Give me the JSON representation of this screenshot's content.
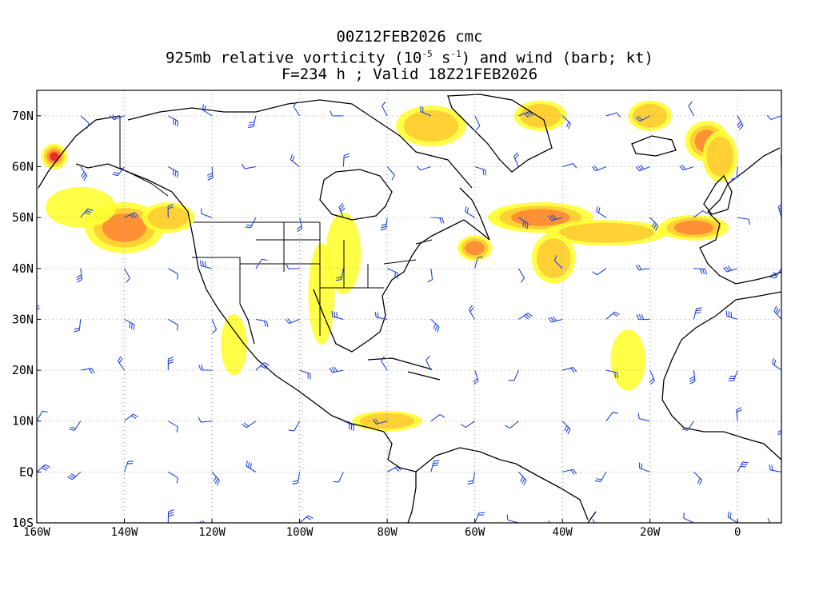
{
  "title": {
    "line1": "00Z12FEB2026 cmc",
    "line2_prefix": "925mb relative vorticity (10",
    "line2_exp1": "-5",
    "line2_mid": " s",
    "line2_exp2": "-1",
    "line2_suffix": ") and wind (barb; kt)",
    "line3": "F=234 h ; Valid 18Z21FEB2026"
  },
  "map": {
    "lon_range": [
      -160,
      10
    ],
    "lat_range": [
      -10,
      75
    ],
    "lat_ticks": [
      {
        "value": 70,
        "label": "70N"
      },
      {
        "value": 60,
        "label": "60N"
      },
      {
        "value": 50,
        "label": "50N"
      },
      {
        "value": 40,
        "label": "40N"
      },
      {
        "value": 30,
        "label": "30N"
      },
      {
        "value": 20,
        "label": "20N"
      },
      {
        "value": 10,
        "label": "10N"
      },
      {
        "value": 0,
        "label": "EQ"
      },
      {
        "value": -10,
        "label": "10S"
      }
    ],
    "lon_ticks": [
      {
        "value": -160,
        "label": "160W"
      },
      {
        "value": -140,
        "label": "140W"
      },
      {
        "value": -120,
        "label": "120W"
      },
      {
        "value": -100,
        "label": "100W"
      },
      {
        "value": -80,
        "label": "80W"
      },
      {
        "value": -60,
        "label": "60W"
      },
      {
        "value": -40,
        "label": "40W"
      },
      {
        "value": -20,
        "label": "20W"
      },
      {
        "value": 0,
        "label": "0"
      }
    ],
    "colors": {
      "vort_low": "#ffff33",
      "vort_mid": "#ffcc33",
      "vort_high": "#ff8833",
      "vort_peak": "#ee2222",
      "vort_max": "#ff44cc",
      "barb": "#2244dd",
      "coast": "#000000",
      "grid": "#999999"
    },
    "vorticity_features": [
      {
        "lon": -141,
        "lat": 48,
        "rx": 5,
        "ry": 3,
        "level": 4
      },
      {
        "lon": -140,
        "lat": 48,
        "rx": 9,
        "ry": 5,
        "level": 2
      },
      {
        "lon": -150,
        "lat": 52,
        "rx": 8,
        "ry": 4,
        "level": 0
      },
      {
        "lon": -156,
        "lat": 62,
        "rx": 3,
        "ry": 2.5,
        "level": 3
      },
      {
        "lon": -130,
        "lat": 50,
        "rx": 6,
        "ry": 3,
        "level": 1
      },
      {
        "lon": -52,
        "lat": 50,
        "rx": 4,
        "ry": 2,
        "level": 3
      },
      {
        "lon": -45,
        "lat": 50,
        "rx": 12,
        "ry": 3,
        "level": 2
      },
      {
        "lon": -30,
        "lat": 47,
        "rx": 14,
        "ry": 2.5,
        "level": 1
      },
      {
        "lon": -10,
        "lat": 48,
        "rx": 8,
        "ry": 2.5,
        "level": 2
      },
      {
        "lon": -42,
        "lat": 42,
        "rx": 5,
        "ry": 5,
        "level": 1
      },
      {
        "lon": -60,
        "lat": 44,
        "rx": 4,
        "ry": 2.5,
        "level": 2
      },
      {
        "lon": -7,
        "lat": 65,
        "rx": 5,
        "ry": 4,
        "level": 2
      },
      {
        "lon": -4,
        "lat": 62,
        "rx": 4,
        "ry": 5,
        "level": 1
      },
      {
        "lon": -90,
        "lat": 43,
        "rx": 4,
        "ry": 8,
        "level": 0
      },
      {
        "lon": -70,
        "lat": 68,
        "rx": 8,
        "ry": 4,
        "level": 1
      },
      {
        "lon": -80,
        "lat": 10,
        "rx": 8,
        "ry": 2,
        "level": 1
      },
      {
        "lon": -95,
        "lat": 35,
        "rx": 3,
        "ry": 10,
        "level": 0
      },
      {
        "lon": -25,
        "lat": 22,
        "rx": 4,
        "ry": 6,
        "level": 0
      },
      {
        "lon": -115,
        "lat": 25,
        "rx": 3,
        "ry": 6,
        "level": 0
      },
      {
        "lon": -45,
        "lat": 70,
        "rx": 6,
        "ry": 3,
        "level": 1
      },
      {
        "lon": -20,
        "lat": 70,
        "rx": 5,
        "ry": 3,
        "level": 1
      }
    ]
  }
}
